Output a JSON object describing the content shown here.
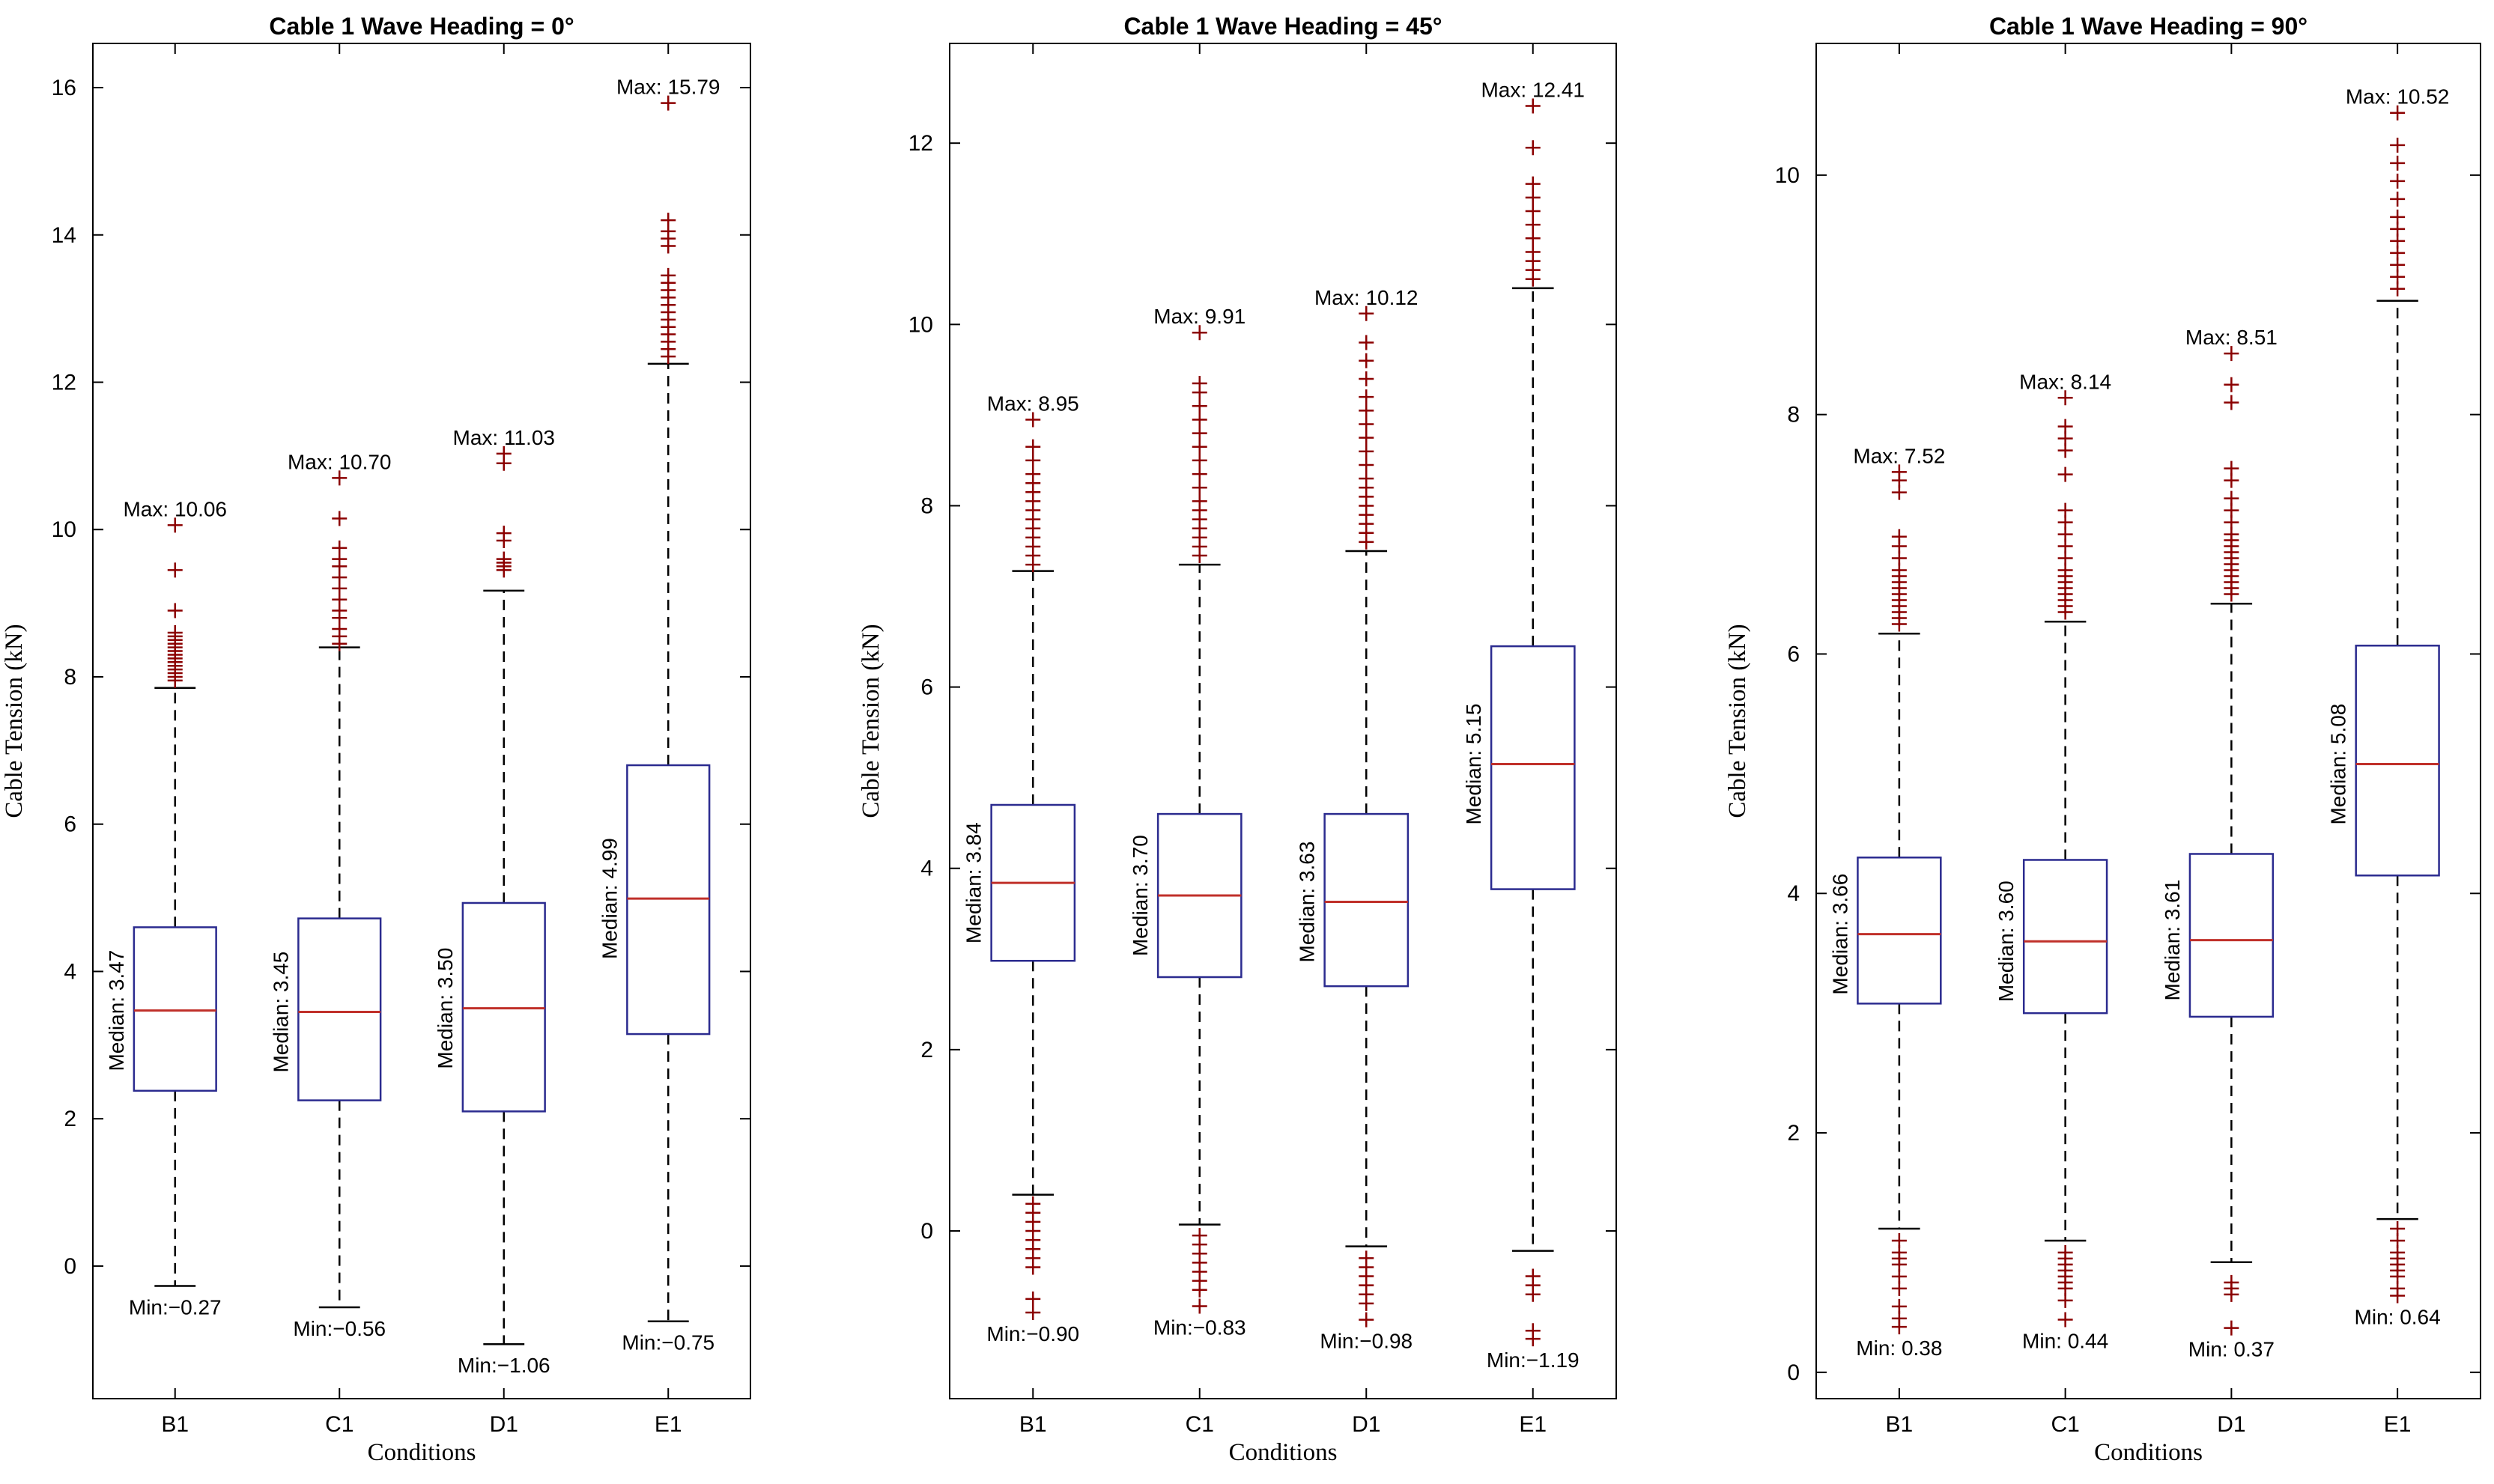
{
  "chart_data": [
    {
      "type": "box",
      "title": "Cable 1 Wave Heading = 0°",
      "xlabel": "Conditions",
      "ylabel": "Cable Tension (kN)",
      "ylim": [
        -1.8,
        16.6
      ],
      "yticks": [
        0,
        2,
        4,
        6,
        8,
        10,
        12,
        14,
        16
      ],
      "categories": [
        "B1",
        "C1",
        "D1",
        "E1"
      ],
      "boxes": [
        {
          "q1": 2.38,
          "median": 3.47,
          "q3": 4.6,
          "whisker_low": -0.27,
          "whisker_high": 7.85,
          "min": -0.27,
          "max": 10.06,
          "min_label": "Min:−0.27",
          "max_label": "Max: 10.06",
          "median_label": "Median: 3.47",
          "outliers_high": [
            7.95,
            8.0,
            8.05,
            8.1,
            8.15,
            8.2,
            8.25,
            8.3,
            8.35,
            8.4,
            8.45,
            8.5,
            8.55,
            8.6,
            8.9,
            9.45,
            10.06
          ],
          "outliers_low": []
        },
        {
          "q1": 2.25,
          "median": 3.45,
          "q3": 4.72,
          "whisker_low": -0.56,
          "whisker_high": 8.4,
          "min": -0.56,
          "max": 10.7,
          "min_label": "Min:−0.56",
          "max_label": "Max: 10.70",
          "median_label": "Median: 3.45",
          "outliers_high": [
            8.45,
            8.55,
            8.65,
            8.8,
            8.9,
            9.05,
            9.2,
            9.35,
            9.5,
            9.6,
            9.75,
            10.15,
            10.7
          ],
          "outliers_low": []
        },
        {
          "q1": 2.1,
          "median": 3.5,
          "q3": 4.93,
          "whisker_low": -1.06,
          "whisker_high": 9.17,
          "min": -1.06,
          "max": 11.03,
          "min_label": "Min:−1.06",
          "max_label": "Max: 11.03",
          "median_label": "Median: 3.50",
          "outliers_high": [
            9.45,
            9.5,
            9.55,
            9.6,
            9.85,
            9.95,
            10.9,
            11.03
          ],
          "outliers_low": []
        },
        {
          "q1": 3.15,
          "median": 4.99,
          "q3": 6.8,
          "whisker_low": -0.75,
          "whisker_high": 12.25,
          "min": -0.75,
          "max": 15.79,
          "min_label": "Min:−0.75",
          "max_label": "Max: 15.79",
          "median_label": "Median: 4.99",
          "outliers_high": [
            12.35,
            12.45,
            12.55,
            12.65,
            12.75,
            12.85,
            12.95,
            13.05,
            13.15,
            13.25,
            13.35,
            13.45,
            13.85,
            13.95,
            14.05,
            14.2,
            15.79
          ],
          "outliers_low": []
        }
      ]
    },
    {
      "type": "box",
      "title": "Cable 1 Wave Heading = 45°",
      "xlabel": "Conditions",
      "ylabel": "Cable Tension (kN)",
      "ylim": [
        -1.85,
        13.1
      ],
      "yticks": [
        0,
        2,
        4,
        6,
        8,
        10,
        12
      ],
      "categories": [
        "B1",
        "C1",
        "D1",
        "E1"
      ],
      "boxes": [
        {
          "q1": 2.98,
          "median": 3.84,
          "q3": 4.7,
          "whisker_low": 0.4,
          "whisker_high": 7.28,
          "min": -0.9,
          "max": 8.95,
          "min_label": "Min:−0.90",
          "max_label": "Max: 8.95",
          "median_label": "Median: 3.84",
          "outliers_high": [
            7.35,
            7.45,
            7.55,
            7.65,
            7.75,
            7.85,
            7.95,
            8.05,
            8.15,
            8.25,
            8.35,
            8.5,
            8.65,
            8.95
          ],
          "outliers_low": [
            0.3,
            0.2,
            0.1,
            0.0,
            -0.1,
            -0.2,
            -0.3,
            -0.4,
            -0.75,
            -0.9
          ]
        },
        {
          "q1": 2.8,
          "median": 3.7,
          "q3": 4.6,
          "whisker_low": 0.07,
          "whisker_high": 7.35,
          "min": -0.83,
          "max": 9.91,
          "min_label": "Min:−0.83",
          "max_label": "Max: 9.91",
          "median_label": "Median: 3.70",
          "outliers_high": [
            7.45,
            7.55,
            7.65,
            7.75,
            7.85,
            7.95,
            8.05,
            8.2,
            8.35,
            8.5,
            8.65,
            8.8,
            8.95,
            9.1,
            9.25,
            9.35,
            9.91
          ],
          "outliers_low": [
            -0.05,
            -0.15,
            -0.25,
            -0.35,
            -0.45,
            -0.55,
            -0.65,
            -0.83
          ]
        },
        {
          "q1": 2.7,
          "median": 3.63,
          "q3": 4.6,
          "whisker_low": -0.17,
          "whisker_high": 7.5,
          "min": -0.98,
          "max": 10.12,
          "min_label": "Min:−0.98",
          "max_label": "Max: 10.12",
          "median_label": "Median: 3.63",
          "outliers_high": [
            7.6,
            7.7,
            7.8,
            7.9,
            8.0,
            8.1,
            8.2,
            8.3,
            8.45,
            8.6,
            8.75,
            8.9,
            9.05,
            9.2,
            9.4,
            9.6,
            9.8,
            10.12
          ],
          "outliers_low": [
            -0.3,
            -0.4,
            -0.5,
            -0.6,
            -0.7,
            -0.8,
            -0.98
          ]
        },
        {
          "q1": 3.77,
          "median": 5.15,
          "q3": 6.45,
          "whisker_low": -0.22,
          "whisker_high": 10.4,
          "min": -1.19,
          "max": 12.41,
          "min_label": "Min:−1.19",
          "max_label": "Max: 12.41",
          "median_label": "Median: 5.15",
          "outliers_high": [
            10.5,
            10.6,
            10.7,
            10.8,
            10.95,
            11.1,
            11.25,
            11.4,
            11.55,
            11.95,
            12.41
          ],
          "outliers_low": [
            -0.5,
            -0.6,
            -0.7,
            -1.1,
            -1.19
          ]
        }
      ]
    },
    {
      "type": "box",
      "title": "Cable 1 Wave Heading = 90°",
      "xlabel": "Conditions",
      "ylabel": "Cable Tension (kN)",
      "ylim": [
        -0.22,
        11.1
      ],
      "yticks": [
        0,
        2,
        4,
        6,
        8,
        10
      ],
      "categories": [
        "B1",
        "C1",
        "D1",
        "E1"
      ],
      "boxes": [
        {
          "q1": 3.08,
          "median": 3.66,
          "q3": 4.3,
          "whisker_low": 1.2,
          "whisker_high": 6.17,
          "min": 0.38,
          "max": 7.52,
          "min_label": "Min: 0.38",
          "max_label": "Max: 7.52",
          "median_label": "Median: 3.66",
          "outliers_high": [
            6.25,
            6.3,
            6.35,
            6.4,
            6.45,
            6.5,
            6.55,
            6.6,
            6.65,
            6.7,
            6.8,
            6.9,
            6.98,
            7.35,
            7.45,
            7.52
          ],
          "outliers_low": [
            1.1,
            1.0,
            0.95,
            0.9,
            0.8,
            0.7,
            0.55,
            0.45,
            0.38
          ]
        },
        {
          "q1": 3.0,
          "median": 3.6,
          "q3": 4.28,
          "whisker_low": 1.1,
          "whisker_high": 6.27,
          "min": 0.44,
          "max": 8.14,
          "min_label": "Min: 0.44",
          "max_label": "Max: 8.14",
          "median_label": "Median: 3.60",
          "outliers_high": [
            6.35,
            6.4,
            6.45,
            6.5,
            6.55,
            6.6,
            6.65,
            6.7,
            6.8,
            6.9,
            7.0,
            7.1,
            7.2,
            7.5,
            7.7,
            7.8,
            7.9,
            8.14
          ],
          "outliers_low": [
            1.0,
            0.95,
            0.9,
            0.85,
            0.8,
            0.75,
            0.7,
            0.6,
            0.44
          ]
        },
        {
          "q1": 2.97,
          "median": 3.61,
          "q3": 4.33,
          "whisker_low": 0.92,
          "whisker_high": 6.42,
          "min": 0.37,
          "max": 8.51,
          "min_label": "Min: 0.37",
          "max_label": "Max: 8.51",
          "median_label": "Median: 3.61",
          "outliers_high": [
            6.5,
            6.55,
            6.6,
            6.65,
            6.7,
            6.75,
            6.8,
            6.85,
            6.9,
            6.95,
            7.0,
            7.1,
            7.2,
            7.3,
            7.45,
            7.55,
            8.1,
            8.25,
            8.51
          ],
          "outliers_low": [
            0.75,
            0.7,
            0.65,
            0.37
          ]
        },
        {
          "q1": 4.15,
          "median": 5.08,
          "q3": 6.07,
          "whisker_low": 1.28,
          "whisker_high": 8.95,
          "min": 0.64,
          "max": 10.52,
          "min_label": "Min: 0.64",
          "max_label": "Max: 10.52",
          "median_label": "Median: 5.08",
          "outliers_high": [
            9.05,
            9.15,
            9.25,
            9.35,
            9.45,
            9.55,
            9.65,
            9.8,
            9.95,
            10.1,
            10.25,
            10.52
          ],
          "outliers_low": [
            1.2,
            1.1,
            1.0,
            0.95,
            0.9,
            0.85,
            0.8,
            0.7,
            0.64
          ]
        }
      ]
    }
  ]
}
